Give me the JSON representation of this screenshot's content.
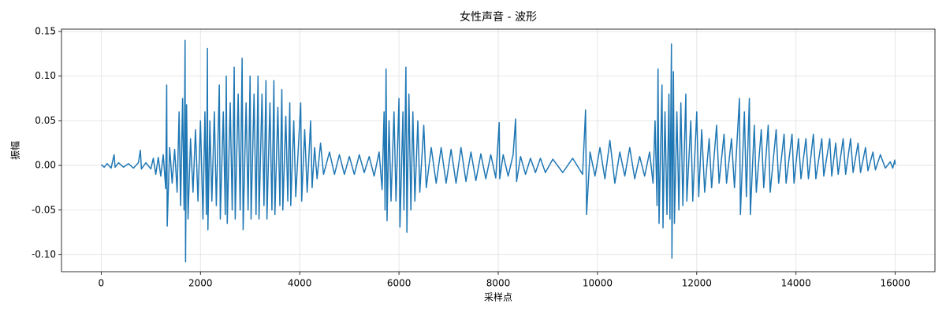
{
  "chart_data": {
    "type": "line",
    "title": "女性声音 - 波形",
    "x_label": "采样点",
    "y_label": "振幅",
    "color": "#1f77b4",
    "grid": true,
    "xlim": [
      -800,
      16800
    ],
    "xticks": [
      0,
      2000,
      4000,
      6000,
      8000,
      10000,
      12000,
      14000,
      16000
    ],
    "ylim": [
      -0.119,
      0.1526
    ],
    "yticks": [
      {
        "value": -0.1,
        "label": "-0.10"
      },
      {
        "value": -0.05,
        "label": "-0.05"
      },
      {
        "value": 0,
        "label": "0.00"
      },
      {
        "value": 0.05,
        "label": "0.05"
      },
      {
        "value": 0.1,
        "label": "0.10"
      },
      {
        "value": 0.15,
        "label": "0.15"
      }
    ],
    "x": [
      0,
      60,
      120,
      200,
      260,
      280,
      350,
      450,
      550,
      650,
      750,
      790,
      810,
      900,
      1000,
      1050,
      1100,
      1150,
      1200,
      1250,
      1300,
      1320,
      1330,
      1380,
      1430,
      1480,
      1530,
      1570,
      1600,
      1640,
      1670,
      1690,
      1700,
      1720,
      1750,
      1800,
      1850,
      1900,
      1950,
      2000,
      2050,
      2090,
      2120,
      2140,
      2150,
      2190,
      2230,
      2280,
      2320,
      2380,
      2400,
      2460,
      2500,
      2520,
      2540,
      2600,
      2640,
      2680,
      2700,
      2760,
      2800,
      2840,
      2860,
      2920,
      2960,
      3000,
      3020,
      3080,
      3120,
      3160,
      3180,
      3240,
      3280,
      3320,
      3340,
      3400,
      3440,
      3480,
      3500,
      3560,
      3600,
      3640,
      3660,
      3720,
      3760,
      3800,
      3820,
      3880,
      3920,
      4020,
      4040,
      4100,
      4150,
      4220,
      4250,
      4300,
      4350,
      4420,
      4480,
      4600,
      4700,
      4800,
      4900,
      5000,
      5100,
      5200,
      5300,
      5400,
      5500,
      5600,
      5660,
      5700,
      5720,
      5740,
      5760,
      5800,
      5840,
      5900,
      5940,
      6000,
      6020,
      6080,
      6100,
      6140,
      6160,
      6200,
      6240,
      6280,
      6320,
      6380,
      6420,
      6500,
      6550,
      6650,
      6750,
      6850,
      6950,
      7050,
      7150,
      7250,
      7350,
      7450,
      7550,
      7650,
      7750,
      7850,
      7950,
      8020,
      8030,
      8100,
      8200,
      8300,
      8350,
      8370,
      8450,
      8550,
      8650,
      8750,
      8850,
      8950,
      9100,
      9300,
      9500,
      9700,
      9760,
      9780,
      9850,
      9950,
      10050,
      10150,
      10250,
      10350,
      10450,
      10550,
      10650,
      10750,
      10850,
      10950,
      11050,
      11120,
      11160,
      11200,
      11220,
      11240,
      11300,
      11320,
      11360,
      11400,
      11440,
      11460,
      11490,
      11500,
      11530,
      11550,
      11600,
      11640,
      11680,
      11720,
      11780,
      11800,
      11880,
      11920,
      12000,
      12040,
      12100,
      12160,
      12250,
      12300,
      12400,
      12450,
      12550,
      12600,
      12700,
      12760,
      12860,
      12880,
      12960,
      13000,
      13060,
      13080,
      13160,
      13200,
      13300,
      13350,
      13440,
      13480,
      13600,
      13650,
      13760,
      13800,
      13920,
      13960,
      14050,
      14100,
      14200,
      14250,
      14350,
      14400,
      14520,
      14560,
      14680,
      14720,
      14800,
      14850,
      14950,
      15000,
      15100,
      15150,
      15250,
      15300,
      15400,
      15450,
      15550,
      15600,
      15700,
      15800,
      15900,
      15950,
      15990,
      16000
    ],
    "values": [
      0.001,
      -0.002,
      0.002,
      -0.003,
      0.012,
      -0.002,
      0.003,
      -0.002,
      0.002,
      -0.003,
      0.003,
      0.017,
      -0.004,
      0.003,
      -0.004,
      0.008,
      -0.01,
      0.009,
      -0.012,
      0.012,
      -0.026,
      0.09,
      -0.068,
      0.02,
      -0.02,
      0.018,
      -0.03,
      0.06,
      -0.045,
      0.075,
      -0.05,
      0.14,
      -0.108,
      0.068,
      -0.06,
      0.03,
      -0.03,
      0.04,
      -0.04,
      0.05,
      -0.06,
      0.06,
      -0.055,
      0.131,
      -0.072,
      0.05,
      -0.04,
      0.06,
      -0.045,
      0.09,
      -0.06,
      0.06,
      -0.055,
      0.1,
      -0.065,
      0.07,
      -0.05,
      0.11,
      -0.06,
      0.08,
      -0.05,
      0.12,
      -0.072,
      0.07,
      -0.05,
      0.1,
      -0.06,
      0.08,
      -0.055,
      0.1,
      -0.06,
      0.08,
      -0.045,
      0.095,
      -0.06,
      0.07,
      -0.05,
      0.095,
      -0.055,
      0.065,
      -0.045,
      0.085,
      -0.05,
      0.055,
      -0.04,
      0.07,
      -0.045,
      0.05,
      -0.035,
      0.07,
      -0.04,
      0.04,
      -0.03,
      0.05,
      -0.025,
      0.02,
      -0.015,
      0.025,
      -0.01,
      0.015,
      -0.01,
      0.012,
      -0.01,
      0.01,
      -0.01,
      0.012,
      -0.008,
      0.01,
      -0.012,
      0.015,
      -0.027,
      0.06,
      -0.05,
      0.108,
      -0.062,
      0.05,
      -0.04,
      0.06,
      -0.04,
      0.075,
      -0.069,
      0.06,
      -0.05,
      0.11,
      -0.075,
      0.08,
      -0.05,
      0.06,
      -0.04,
      0.05,
      -0.03,
      0.045,
      -0.025,
      0.02,
      -0.02,
      0.02,
      -0.02,
      0.018,
      -0.02,
      0.02,
      -0.018,
      0.015,
      -0.017,
      0.013,
      -0.015,
      0.012,
      -0.014,
      0.048,
      -0.015,
      0.012,
      -0.012,
      0.012,
      0.052,
      -0.018,
      0.01,
      -0.01,
      0.008,
      -0.008,
      0.008,
      -0.008,
      0.007,
      -0.008,
      0.008,
      -0.01,
      0.062,
      -0.055,
      0.015,
      -0.012,
      0.02,
      -0.015,
      0.028,
      -0.02,
      0.015,
      -0.012,
      0.02,
      -0.015,
      0.01,
      -0.012,
      0.015,
      -0.02,
      0.05,
      -0.045,
      0.108,
      -0.065,
      0.09,
      -0.07,
      0.06,
      -0.055,
      0.08,
      -0.06,
      0.136,
      -0.104,
      0.105,
      -0.065,
      0.06,
      -0.05,
      0.07,
      -0.045,
      0.08,
      -0.04,
      0.05,
      -0.04,
      0.06,
      -0.035,
      0.04,
      -0.03,
      0.03,
      -0.025,
      0.045,
      -0.02,
      0.035,
      -0.02,
      0.03,
      -0.025,
      0.075,
      -0.055,
      0.06,
      -0.035,
      0.075,
      -0.055,
      0.045,
      -0.03,
      0.04,
      -0.025,
      0.045,
      -0.03,
      0.04,
      -0.02,
      0.035,
      -0.02,
      0.035,
      -0.02,
      0.03,
      -0.015,
      0.03,
      -0.015,
      0.035,
      -0.015,
      0.03,
      -0.012,
      0.03,
      -0.012,
      0.025,
      -0.01,
      0.03,
      -0.01,
      0.03,
      -0.008,
      0.025,
      -0.008,
      0.02,
      -0.006,
      0.015,
      -0.005,
      0.012,
      -0.003,
      0.004,
      -0.003,
      0.006,
      0.001
    ]
  }
}
